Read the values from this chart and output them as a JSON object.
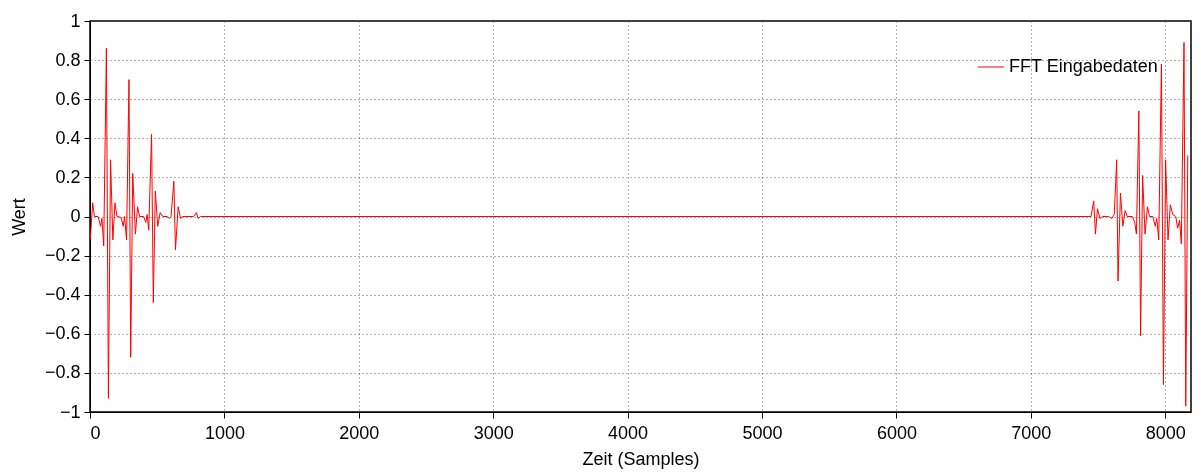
{
  "chart_data": {
    "type": "line",
    "xlabel": "Zeit (Samples)",
    "ylabel": "Wert",
    "xlim": [
      0,
      8192
    ],
    "xticks": [
      0,
      1000,
      2000,
      3000,
      4000,
      5000,
      6000,
      7000,
      8000
    ],
    "ylim": [
      -1,
      1
    ],
    "yticks": [
      -1,
      -0.8,
      -0.6,
      -0.4,
      -0.2,
      0,
      0.2,
      0.4,
      0.6,
      0.8,
      1
    ],
    "grid": true,
    "legend": "top right",
    "line_style": "solid",
    "x": [
      2,
      20,
      33,
      60,
      79,
      89,
      102,
      122,
      137,
      153,
      170,
      186,
      201,
      232,
      247,
      257,
      272,
      290,
      303,
      318,
      338,
      354,
      369,
      399,
      415,
      425,
      437,
      458,
      471,
      486,
      504,
      522,
      542,
      573,
      593,
      603,
      624,
      636,
      656,
      674,
      689,
      771,
      792,
      804,
      822,
      7448,
      7468,
      7481,
      7496,
      7514,
      7534,
      7578,
      7603,
      7621,
      7639,
      7649,
      7667,
      7685,
      7702,
      7718,
      7756,
      7773,
      7786,
      7804,
      7817,
      7832,
      7850,
      7868,
      7883,
      7908,
      7926,
      7937,
      7952,
      7972,
      7987,
      8003,
      8021,
      8038,
      8056,
      8079,
      8092,
      8107,
      8120,
      8140,
      8153,
      8168
    ],
    "series": [
      {
        "name": "FFT Eingabedaten",
        "color": "#ff0000",
        "values": [
          -0.12,
          0.07,
          0,
          0,
          -0.05,
          -0.01,
          -0.15,
          0.86,
          -0.93,
          0.29,
          -0.12,
          0.07,
          0,
          -0.005,
          -0.05,
          0,
          -0.12,
          0.7,
          -0.72,
          0.22,
          -0.09,
          0.05,
          0,
          0,
          -0.03,
          0.01,
          -0.07,
          0.42,
          -0.44,
          0.13,
          -0.05,
          0.02,
          0,
          0,
          -0.01,
          0,
          0.18,
          -0.17,
          0.05,
          -0.01,
          0,
          0,
          0.02,
          -0.01,
          0,
          0,
          0.08,
          -0.09,
          0.04,
          -0.01,
          0,
          0,
          -0.01,
          0.01,
          0.29,
          -0.33,
          0.12,
          -0.05,
          0.03,
          0,
          0,
          -0.03,
          -0.09,
          0.54,
          -0.61,
          0.21,
          -0.09,
          0.05,
          0,
          0,
          -0.05,
          -0.01,
          -0.12,
          0.78,
          -0.86,
          0.29,
          -0.12,
          0.06,
          0.01,
          0,
          -0.06,
          -0.02,
          -0.14,
          0.89,
          -0.97,
          0.31
        ]
      }
    ]
  }
}
